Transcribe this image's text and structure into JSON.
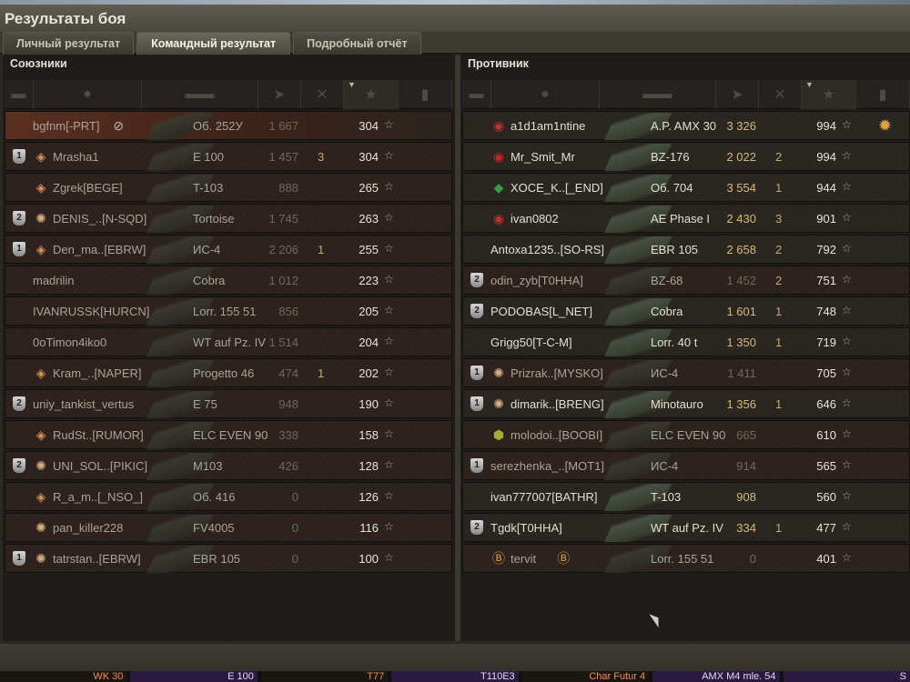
{
  "window": {
    "title": "Результаты боя"
  },
  "tabs": [
    {
      "label": "Личный результат",
      "active": false
    },
    {
      "label": "Командный результат",
      "active": true
    },
    {
      "label": "Подробный отчёт",
      "active": false
    }
  ],
  "columns": [
    "platoon-icon",
    "player-icon",
    "vehicle-icon",
    "damage-icon",
    "kills-icon",
    "experience-star-icon",
    "medal-icon"
  ],
  "sorted_column": "experience",
  "allies": {
    "title": "Союзники",
    "rows": [
      {
        "platoon": "",
        "badge": "",
        "name": "bgfnm[-PRT]",
        "extra": "hidden-eye-icon",
        "tank": "Об. 252У",
        "damage": "1 667",
        "kills": "",
        "xp": "304",
        "medal": "",
        "alive": false,
        "self": true
      },
      {
        "platoon": "1",
        "badge": "rank-1-icon",
        "name": "Mrasha1",
        "tank": "E 100",
        "damage": "1 457",
        "kills": "3",
        "xp": "304",
        "medal": "",
        "alive": false
      },
      {
        "platoon": "",
        "badge": "rank-1-icon",
        "name": "Zgrek[BEGE]",
        "tank": "T-103",
        "damage": "888",
        "kills": "",
        "xp": "265",
        "medal": "",
        "alive": false
      },
      {
        "platoon": "2",
        "badge": "rating-medal-icon",
        "name": "DENIS_..[N-SQD]",
        "tank": "Tortoise",
        "damage": "1 745",
        "kills": "",
        "xp": "263",
        "medal": "",
        "alive": false
      },
      {
        "platoon": "1",
        "badge": "rank-2-icon",
        "name": "Den_ma..[EBRW]",
        "tank": "ИС-4",
        "damage": "2 206",
        "kills": "1",
        "xp": "255",
        "medal": "",
        "alive": false
      },
      {
        "platoon": "",
        "badge": "",
        "name": "madrilin",
        "tank": "Cobra",
        "damage": "1 012",
        "kills": "",
        "xp": "223",
        "medal": "",
        "alive": false
      },
      {
        "platoon": "",
        "badge": "",
        "name": "IVANRUSSK[HURCN]",
        "tank": "Lorr. 155 51",
        "damage": "856",
        "kills": "",
        "xp": "205",
        "medal": "",
        "alive": false
      },
      {
        "platoon": "",
        "badge": "",
        "name": "0oTimon4iko0",
        "tank": "WT auf Pz. IV",
        "damage": "1 514",
        "kills": "",
        "xp": "204",
        "medal": "",
        "alive": false
      },
      {
        "platoon": "",
        "badge": "rank-2-icon",
        "name": "Kram_..[NAPER]",
        "tank": "Progetto 46",
        "damage": "474",
        "kills": "1",
        "xp": "202",
        "medal": "",
        "alive": false
      },
      {
        "platoon": "2",
        "badge": "",
        "name": "uniy_tankist_vertus",
        "tank": "E 75",
        "damage": "948",
        "kills": "",
        "xp": "190",
        "medal": "",
        "alive": false
      },
      {
        "platoon": "",
        "badge": "rank-1-icon",
        "name": "RudSt..[RUMOR]",
        "tank": "ELC EVEN 90",
        "damage": "338",
        "kills": "",
        "xp": "158",
        "medal": "",
        "alive": false
      },
      {
        "platoon": "2",
        "badge": "rating-medal-icon",
        "name": "UNI_SOL..[PIKIC]",
        "tank": "M103",
        "damage": "426",
        "kills": "",
        "xp": "128",
        "medal": "",
        "alive": false
      },
      {
        "platoon": "",
        "badge": "rank-1-icon",
        "name": "R_a_m..[_NSO_]",
        "tank": "Об. 416",
        "damage": "0",
        "kills": "",
        "xp": "126",
        "medal": "",
        "alive": false
      },
      {
        "platoon": "",
        "badge": "rating-medal-icon",
        "name": "pan_killer228",
        "tank": "FV4005",
        "damage": "0",
        "kills": "",
        "xp": "116",
        "medal": "",
        "alive": false
      },
      {
        "platoon": "1",
        "badge": "rating-medal-icon",
        "name": "tatrstan..[EBRW]",
        "tank": "EBR 105",
        "damage": "0",
        "kills": "",
        "xp": "100",
        "medal": "",
        "alive": false
      }
    ]
  },
  "enemies": {
    "title": "Противник",
    "rows": [
      {
        "platoon": "",
        "badge": "rank-red-icon",
        "name": "a1d1am1ntine",
        "tank": "A.P. AMX 30",
        "damage": "3 326",
        "kills": "",
        "xp": "994",
        "medal": "order-medal-icon",
        "alive": true
      },
      {
        "platoon": "",
        "badge": "rank-red-round-icon",
        "name": "Mr_Smit_Mr",
        "tank": "BZ-176",
        "damage": "2 022",
        "kills": "2",
        "xp": "994",
        "medal": "",
        "alive": true
      },
      {
        "platoon": "",
        "badge": "rank-13-icon",
        "name": "XOCE_K..[_END]",
        "tank": "Об. 704",
        "damage": "3 554",
        "kills": "1",
        "xp": "944",
        "medal": "",
        "alive": true
      },
      {
        "platoon": "",
        "badge": "rank-red-icon",
        "name": "ivan0802",
        "tank": "AE Phase I",
        "damage": "2 430",
        "kills": "3",
        "xp": "901",
        "medal": "",
        "alive": true
      },
      {
        "platoon": "",
        "badge": "",
        "name": "Antoxa1235..[SO-RS]",
        "tank": "EBR 105",
        "damage": "2 658",
        "kills": "2",
        "xp": "792",
        "medal": "",
        "alive": true
      },
      {
        "platoon": "2",
        "badge": "",
        "name": "odin_zyb[T0HHA]",
        "tank": "BZ-68",
        "damage": "1 452",
        "kills": "2",
        "xp": "751",
        "medal": "",
        "alive": false
      },
      {
        "platoon": "2",
        "badge": "",
        "name": "PODOBAS[L_NET]",
        "tank": "Cobra",
        "damage": "1 601",
        "kills": "1",
        "xp": "748",
        "medal": "",
        "alive": true
      },
      {
        "platoon": "",
        "badge": "",
        "name": "Grigg50[T-C-M]",
        "tank": "Lorr. 40 t",
        "damage": "1 350",
        "kills": "1",
        "xp": "719",
        "medal": "",
        "alive": true
      },
      {
        "platoon": "1",
        "badge": "rating-medal-icon",
        "name": "Prizrak..[MYSKO]",
        "tank": "ИС-4",
        "damage": "1 411",
        "kills": "",
        "xp": "705",
        "medal": "",
        "alive": false
      },
      {
        "platoon": "1",
        "badge": "rating-medal-icon",
        "name": "dimarik..[BRENG]",
        "tank": "Minotauro",
        "damage": "1 356",
        "kills": "1",
        "xp": "646",
        "medal": "",
        "alive": true
      },
      {
        "platoon": "",
        "badge": "shield-emblem-icon",
        "name": "molodoi..[BOOBI]",
        "tank": "ELC EVEN 90",
        "damage": "665",
        "kills": "",
        "xp": "610",
        "medal": "",
        "alive": false
      },
      {
        "platoon": "1",
        "badge": "",
        "name": "serezhenka_..[MOT1]",
        "tank": "ИС-4",
        "damage": "914",
        "kills": "",
        "xp": "565",
        "medal": "",
        "alive": false
      },
      {
        "platoon": "",
        "badge": "",
        "name": "ivan777007[BATHR]",
        "tank": "T-103",
        "damage": "908",
        "kills": "",
        "xp": "560",
        "medal": "",
        "alive": true
      },
      {
        "platoon": "2",
        "badge": "",
        "name": "Tgdk[T0HHA]",
        "tank": "WT auf Pz. IV",
        "damage": "334",
        "kills": "1",
        "xp": "477",
        "medal": "",
        "alive": true
      },
      {
        "platoon": "",
        "badge": "bond-b-icon",
        "name": "tervit",
        "extra": "bond-b-icon",
        "tank": "Lorr. 155 51",
        "damage": "0",
        "kills": "",
        "xp": "401",
        "medal": "",
        "alive": false
      }
    ]
  },
  "carousel": [
    {
      "label": "WK 30",
      "premium": true
    },
    {
      "label": "E 100",
      "premium": false
    },
    {
      "label": "T77",
      "premium": true
    },
    {
      "label": "T110E3",
      "premium": false
    },
    {
      "label": "Char Futur 4",
      "premium": true
    },
    {
      "label": "AMX M4 mle. 54",
      "premium": false
    },
    {
      "label": "S",
      "premium": false
    }
  ]
}
